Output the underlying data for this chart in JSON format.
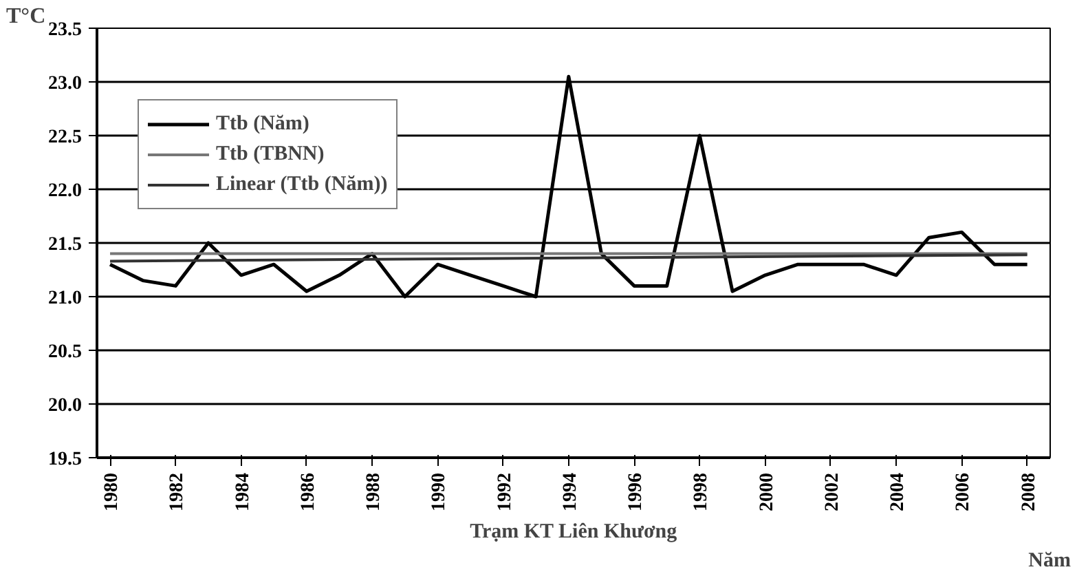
{
  "chart_data": {
    "type": "line",
    "ylabel": "T°C",
    "xlabel": "Năm",
    "annotations": [
      "Trạm KT Liên Khương"
    ],
    "x": [
      1980,
      1981,
      1982,
      1983,
      1984,
      1985,
      1986,
      1987,
      1988,
      1989,
      1990,
      1991,
      1992,
      1993,
      1994,
      1995,
      1996,
      1997,
      1998,
      1999,
      2000,
      2001,
      2002,
      2003,
      2004,
      2005,
      2006,
      2007,
      2008
    ],
    "series": [
      {
        "name": "Ttb (Năm)",
        "color": "#000000",
        "values": [
          21.3,
          21.15,
          21.1,
          21.5,
          21.2,
          21.3,
          21.05,
          21.2,
          21.4,
          21.0,
          21.3,
          21.2,
          21.1,
          21.0,
          23.05,
          21.4,
          21.1,
          21.1,
          22.5,
          21.05,
          21.2,
          21.3,
          21.3,
          21.3,
          21.2,
          21.55,
          21.6,
          21.3,
          21.3
        ]
      },
      {
        "name": "Ttb (TBNN)",
        "color": "#777777",
        "values": [
          21.4,
          21.4,
          21.4,
          21.4,
          21.4,
          21.4,
          21.4,
          21.4,
          21.4,
          21.4,
          21.4,
          21.4,
          21.4,
          21.4,
          21.4,
          21.4,
          21.4,
          21.4,
          21.4,
          21.4,
          21.4,
          21.4,
          21.4,
          21.4,
          21.4,
          21.4,
          21.4,
          21.4,
          21.4
        ]
      },
      {
        "name": "Linear (Ttb (Năm))",
        "color": "#333333",
        "x": [
          1980,
          2008
        ],
        "values": [
          21.33,
          21.39
        ]
      }
    ],
    "xlim": [
      1979.6,
      2008.7
    ],
    "xticks": [
      1980,
      1982,
      1984,
      1986,
      1988,
      1990,
      1992,
      1994,
      1996,
      1998,
      2000,
      2002,
      2004,
      2006,
      2008
    ],
    "ylim": [
      19.5,
      23.5
    ],
    "yticks": [
      {
        "value": 19.5,
        "label": "19.5"
      },
      {
        "value": 20,
        "label": "20.0"
      },
      {
        "value": 20.5,
        "label": "20.5"
      },
      {
        "value": 21,
        "label": "21.0"
      },
      {
        "value": 21.5,
        "label": "21.5"
      },
      {
        "value": 22,
        "label": "22.0"
      },
      {
        "value": 22.5,
        "label": "22.5"
      },
      {
        "value": 23,
        "label": "23.0"
      },
      {
        "value": 23.5,
        "label": "23.5"
      }
    ],
    "grid": "y",
    "legend": "top left",
    "marker": "none",
    "line_style": "solid"
  }
}
